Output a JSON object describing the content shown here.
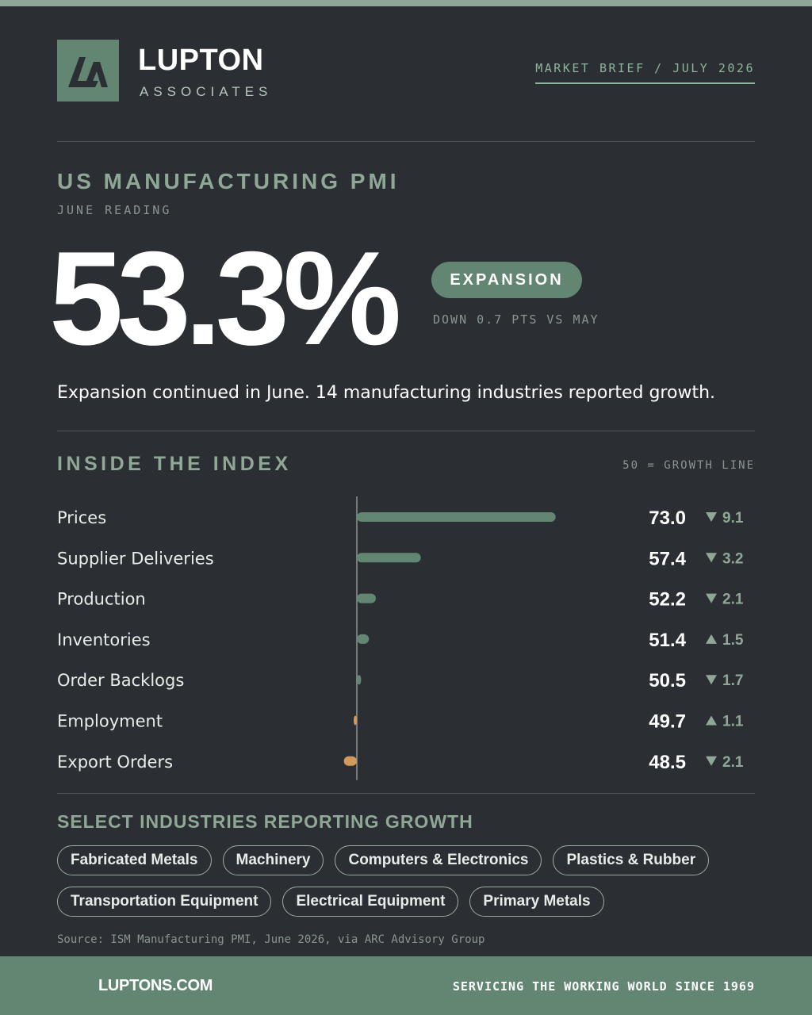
{
  "brand": {
    "name": "LUPTON",
    "sub": "ASSOCIATES"
  },
  "header": {
    "brief_label": "MARKET BRIEF / JULY 2026"
  },
  "pmi": {
    "title": "US MANUFACTURING PMI",
    "subtitle": "JUNE READING",
    "value": "53.3%",
    "status": "EXPANSION",
    "change": "DOWN 0.7 PTS VS MAY",
    "summary": "Expansion continued in June. 14 manufacturing industries reported growth."
  },
  "index_section": {
    "title": "INSIDE THE INDEX",
    "note": "50 = GROWTH LINE"
  },
  "chart_data": {
    "type": "bar",
    "baseline": 50,
    "categories": [
      "Prices",
      "Supplier Deliveries",
      "Production",
      "Inventories",
      "Order Backlogs",
      "Employment",
      "Export Orders"
    ],
    "values": [
      73.0,
      57.4,
      52.2,
      51.4,
      50.5,
      49.7,
      48.5
    ],
    "value_labels": [
      "73.0",
      "57.4",
      "52.2",
      "51.4",
      "50.5",
      "49.7",
      "48.5"
    ],
    "changes": [
      {
        "direction": "down",
        "label": "9.1"
      },
      {
        "direction": "down",
        "label": "3.2"
      },
      {
        "direction": "down",
        "label": "2.1"
      },
      {
        "direction": "up",
        "label": "1.5"
      },
      {
        "direction": "down",
        "label": "1.7"
      },
      {
        "direction": "up",
        "label": "1.1"
      },
      {
        "direction": "down",
        "label": "2.1"
      }
    ],
    "colors": {
      "above": "#628672",
      "below": "#d39a5c",
      "arrow": "#8fa896"
    }
  },
  "industries": {
    "title": "SELECT INDUSTRIES REPORTING GROWTH",
    "items": [
      "Fabricated Metals",
      "Machinery",
      "Computers & Electronics",
      "Plastics & Rubber",
      "Transportation Equipment",
      "Electrical Equipment",
      "Primary Metals"
    ]
  },
  "source": "Source: ISM Manufacturing PMI, June 2026, via ARC Advisory Group",
  "footer": {
    "url": "LUPTONS.COM",
    "tagline": "SERVICING THE WORKING WORLD SINCE 1969"
  },
  "colors": {
    "background": "#2b2f33",
    "accent": "#628672",
    "accent_light": "#8fa896",
    "warning": "#d39a5c"
  }
}
